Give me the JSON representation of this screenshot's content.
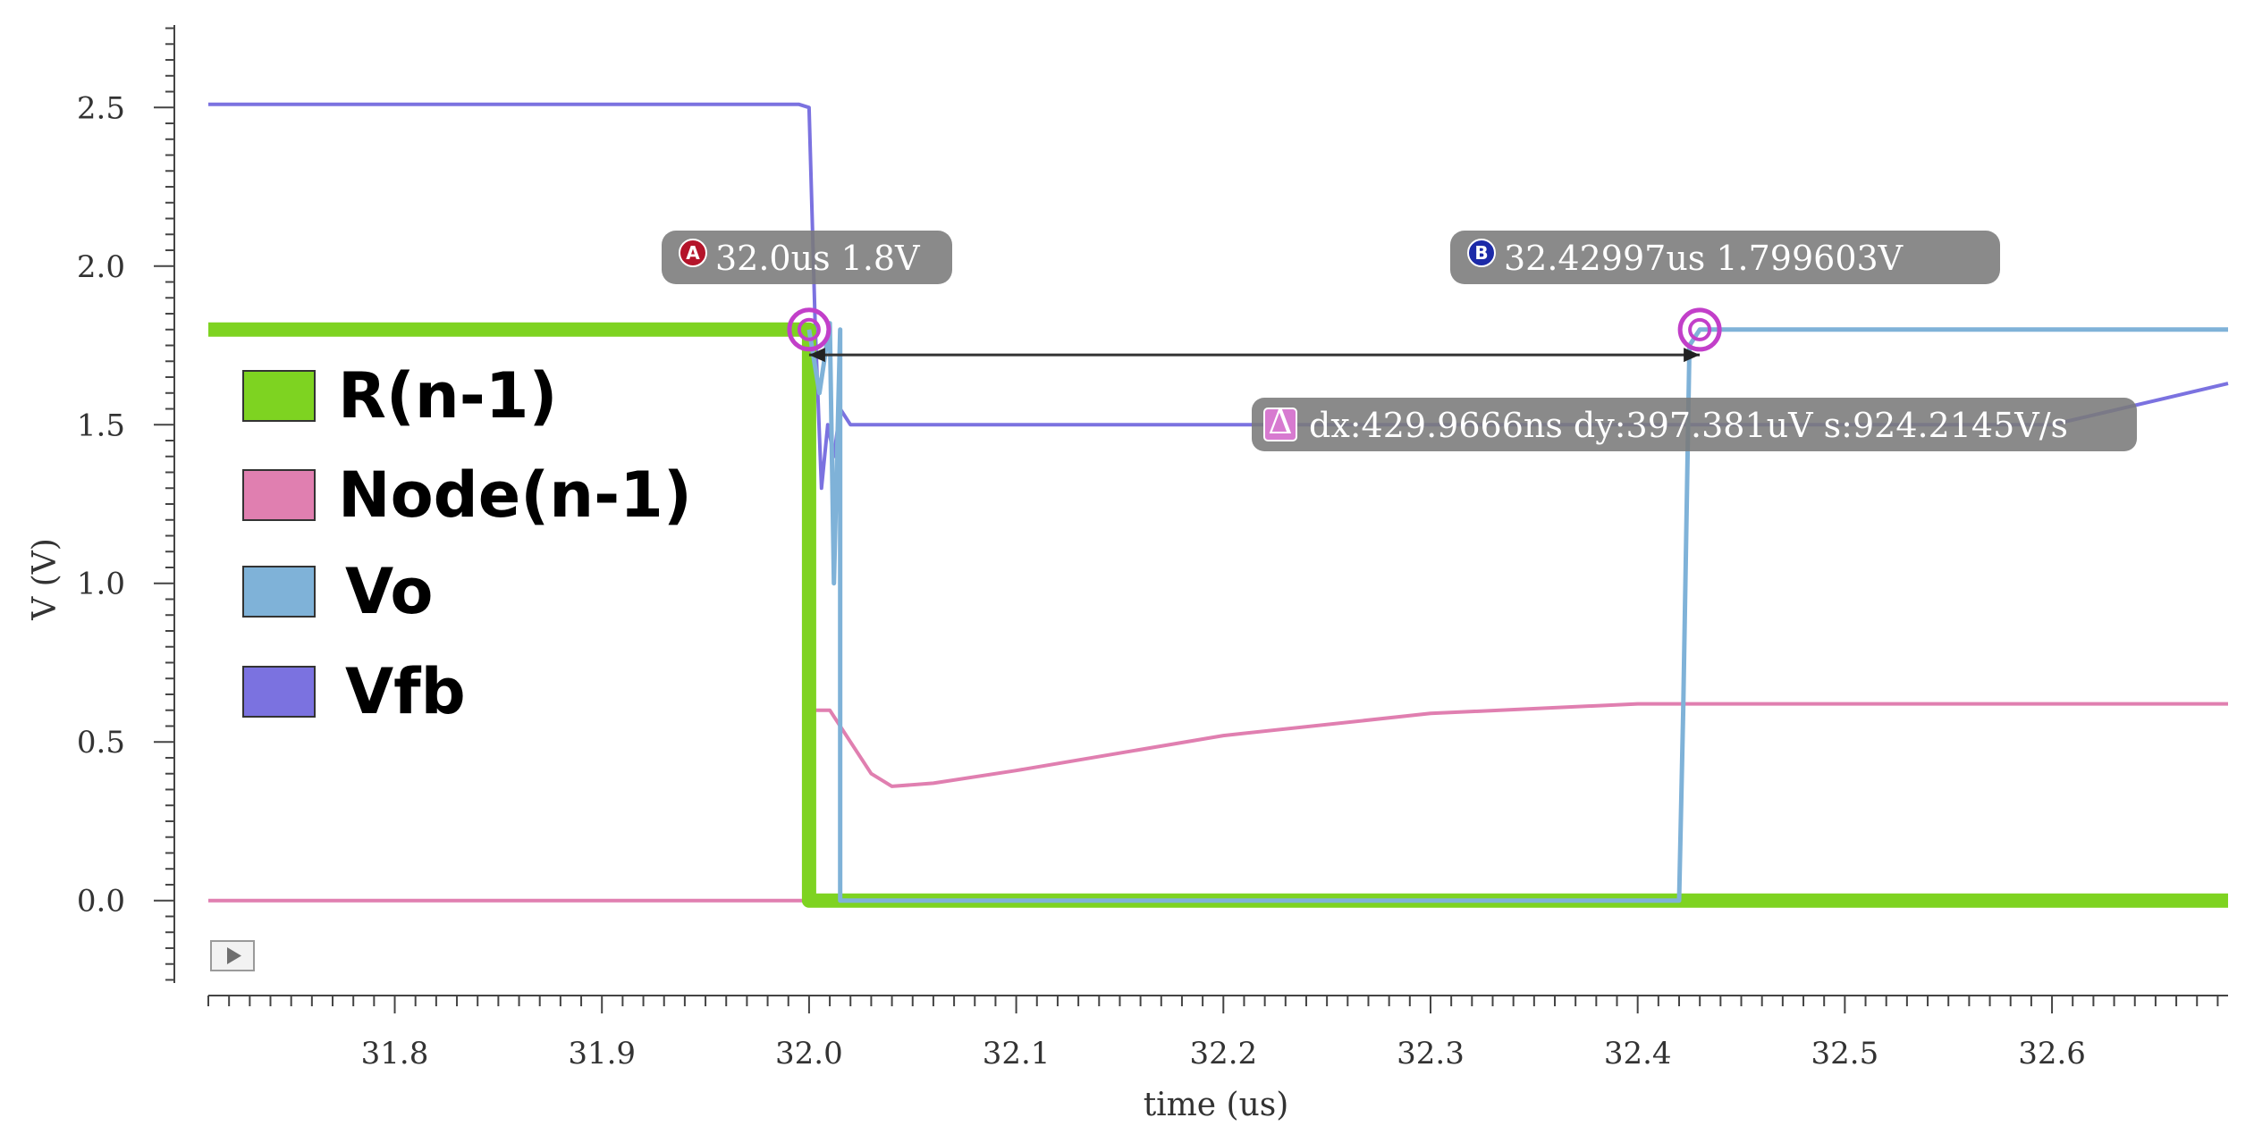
{
  "chart_data": {
    "type": "line",
    "xlabel": "time (us)",
    "ylabel": "V (V)",
    "xlim": [
      31.71,
      32.685
    ],
    "ylim": [
      -0.26,
      2.76
    ],
    "x_ticks": [
      "31.8",
      "31.9",
      "32.0",
      "32.1",
      "32.2",
      "32.3",
      "32.4",
      "32.5",
      "32.6"
    ],
    "y_ticks": [
      "0.0",
      "0.5",
      "1.0",
      "1.5",
      "2.0",
      "2.5"
    ],
    "grid": false,
    "legend_position": "left",
    "series": [
      {
        "name": "R(n-1)",
        "color": "#7ed321",
        "x": [
          31.71,
          32.0,
          32.0,
          32.685
        ],
        "y": [
          1.8,
          1.8,
          0.0,
          0.0
        ]
      },
      {
        "name": "Node(n-1)",
        "color": "#e07fb0",
        "x": [
          31.71,
          32.0,
          32.0,
          32.01,
          32.02,
          32.03,
          32.04,
          32.06,
          32.1,
          32.2,
          32.3,
          32.4,
          32.5,
          32.685
        ],
        "y": [
          0.0,
          0.0,
          0.6,
          0.6,
          0.5,
          0.4,
          0.36,
          0.37,
          0.41,
          0.52,
          0.59,
          0.62,
          0.62,
          0.62
        ]
      },
      {
        "name": "Vo",
        "color": "#7fb2d8",
        "x": [
          32.0,
          32.005,
          32.01,
          32.012,
          32.015,
          32.015,
          32.018,
          32.018,
          32.42,
          32.422,
          32.425,
          32.43,
          32.44,
          32.685
        ],
        "y": [
          1.8,
          1.6,
          1.82,
          1.0,
          1.8,
          0.0,
          0.0,
          0.0,
          0.0,
          0.6,
          1.75,
          1.8,
          1.8,
          1.8
        ]
      },
      {
        "name": "Vfb",
        "color": "#7b72e0",
        "x": [
          31.71,
          31.995,
          32.0,
          32.003,
          32.006,
          32.009,
          32.012,
          32.015,
          32.02,
          32.03,
          32.43,
          32.5,
          32.6,
          32.685
        ],
        "y": [
          2.51,
          2.51,
          2.5,
          1.8,
          1.3,
          1.5,
          1.4,
          1.55,
          1.5,
          1.5,
          1.5,
          1.5,
          1.5,
          1.63
        ]
      }
    ],
    "markers": [
      {
        "id": "A",
        "label": "32.0us 1.8V",
        "x": 32.0,
        "y": 1.8,
        "color": "#b4142a"
      },
      {
        "id": "B",
        "label": "32.42997us 1.799603V",
        "x": 32.42997,
        "y": 1.799603,
        "color": "#1c2aa8"
      }
    ],
    "delta": {
      "symbol": "Δ",
      "label": "dx:429.9666ns dy:397.381uV s:924.2145V/s",
      "y": 1.72
    }
  }
}
